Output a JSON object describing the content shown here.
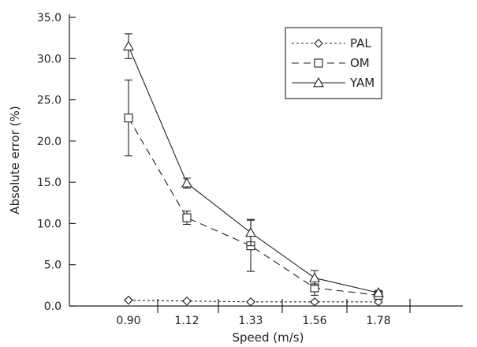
{
  "chart_data": {
    "type": "line",
    "xlabel": "Speed (m/s)",
    "ylabel": "Absolute error (%)",
    "categories": [
      "0.90",
      "1.12",
      "1.33",
      "1.56",
      "1.78"
    ],
    "ylim": [
      0,
      35
    ],
    "yticks": [
      "0.0",
      "5.0",
      "10.0",
      "15.0",
      "20.0",
      "25.0",
      "30.0",
      "35.0"
    ],
    "grid": false,
    "legend_position": "top-right",
    "series": [
      {
        "name": "PAL",
        "marker": "diamond",
        "line_style": "dotted",
        "values": [
          0.7,
          0.6,
          0.5,
          0.5,
          0.5
        ],
        "error": [
          0.1,
          0.1,
          0.1,
          0.1,
          0.1
        ]
      },
      {
        "name": "OM",
        "marker": "square",
        "line_style": "dashed",
        "values": [
          22.8,
          10.7,
          7.3,
          2.2,
          1.3
        ],
        "error": [
          4.6,
          0.8,
          3.1,
          0.9,
          0.3
        ]
      },
      {
        "name": "YAM",
        "marker": "triangle",
        "line_style": "solid",
        "values": [
          31.5,
          14.9,
          8.9,
          3.4,
          1.6
        ],
        "error": [
          1.5,
          0.6,
          1.6,
          0.9,
          0.3
        ]
      }
    ]
  }
}
